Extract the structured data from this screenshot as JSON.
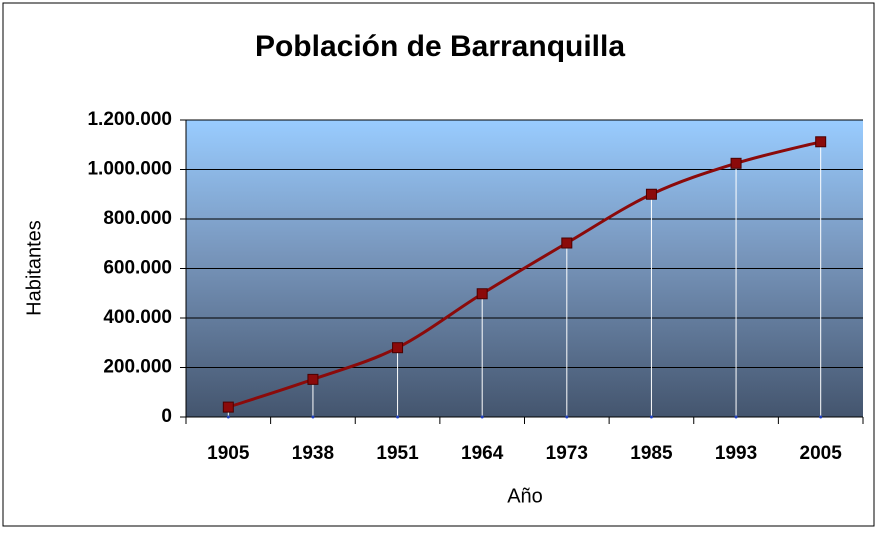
{
  "chart_data": {
    "type": "line",
    "title": "Población de Barranquilla",
    "x_label": "Año",
    "y_label": "Habitantes",
    "categories": [
      "1905",
      "1938",
      "1951",
      "1964",
      "1973",
      "1985",
      "1993",
      "2005"
    ],
    "series": [
      {
        "name": "Habitantes",
        "color": "#8b0a0a",
        "values": [
          40000,
          152000,
          280000,
          498000,
          703000,
          900000,
          1025000,
          1112000
        ]
      }
    ],
    "ylim": [
      0,
      1200000
    ],
    "yticks": [
      0,
      {
        "value": 200000,
        "label": "200.000"
      },
      {
        "value": 400000,
        "label": "400.000"
      },
      {
        "value": 600000,
        "label": "600.000"
      },
      {
        "value": 800000,
        "label": "800.000"
      },
      {
        "value": 1000000,
        "label": "1.000.000"
      },
      {
        "value": 1200000,
        "label": "1.200.000"
      }
    ],
    "grid": true,
    "drop_lines": true
  }
}
